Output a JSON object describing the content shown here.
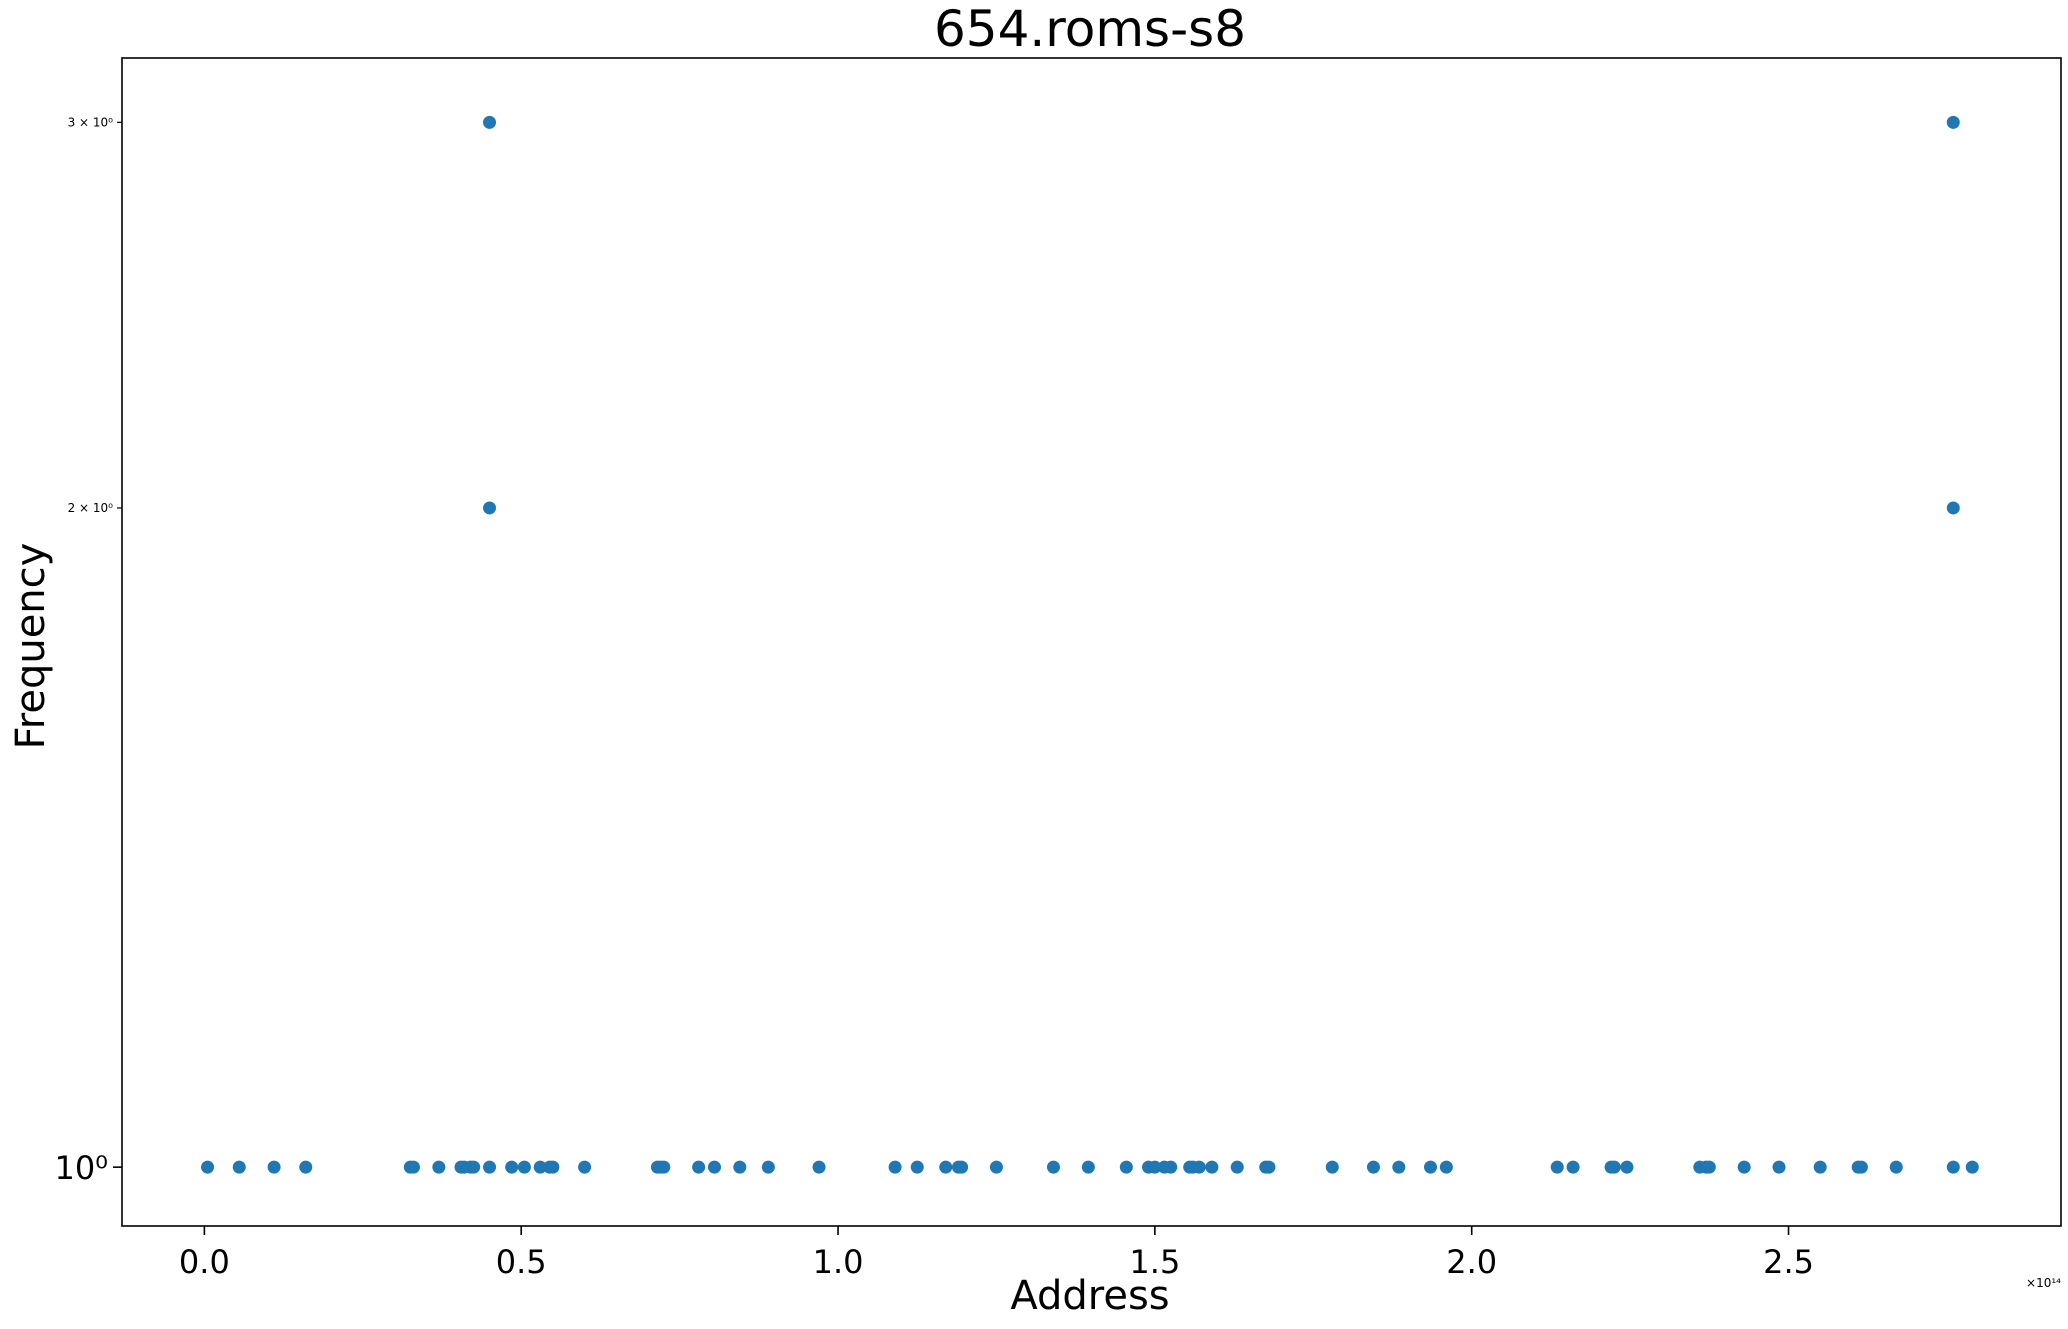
{
  "chart_data": {
    "type": "scatter",
    "title": "654.roms-s8",
    "xlabel": "Address",
    "ylabel": "Frequency",
    "x_offset_label": "×10¹⁴",
    "x_scale_factor": 100000000000000.0,
    "xlim": [
      -0.13,
      2.93
    ],
    "ylim": [
      0.94,
      3.21
    ],
    "yscale": "log",
    "grid": false,
    "marker_color": "#1f77b4",
    "x_ticks": [
      {
        "value": 0.0,
        "label": "0.0"
      },
      {
        "value": 0.5,
        "label": "0.5"
      },
      {
        "value": 1.0,
        "label": "1.0"
      },
      {
        "value": 1.5,
        "label": "1.5"
      },
      {
        "value": 2.0,
        "label": "2.0"
      },
      {
        "value": 2.5,
        "label": "2.5"
      }
    ],
    "y_ticks": [
      {
        "value": 1,
        "label": "10⁰",
        "major": true
      },
      {
        "value": 2,
        "label": "2 × 10⁰",
        "major": false
      },
      {
        "value": 3,
        "label": "3 × 10⁰",
        "major": false
      }
    ],
    "points": [
      {
        "x": 0.005,
        "y": 1
      },
      {
        "x": 0.055,
        "y": 1
      },
      {
        "x": 0.11,
        "y": 1
      },
      {
        "x": 0.16,
        "y": 1
      },
      {
        "x": 0.325,
        "y": 1
      },
      {
        "x": 0.33,
        "y": 1
      },
      {
        "x": 0.37,
        "y": 1
      },
      {
        "x": 0.405,
        "y": 1
      },
      {
        "x": 0.41,
        "y": 1
      },
      {
        "x": 0.42,
        "y": 1
      },
      {
        "x": 0.425,
        "y": 1
      },
      {
        "x": 0.45,
        "y": 1
      },
      {
        "x": 0.45,
        "y": 2
      },
      {
        "x": 0.45,
        "y": 3
      },
      {
        "x": 0.485,
        "y": 1
      },
      {
        "x": 0.505,
        "y": 1
      },
      {
        "x": 0.53,
        "y": 1
      },
      {
        "x": 0.545,
        "y": 1
      },
      {
        "x": 0.55,
        "y": 1
      },
      {
        "x": 0.6,
        "y": 1
      },
      {
        "x": 0.715,
        "y": 1
      },
      {
        "x": 0.72,
        "y": 1
      },
      {
        "x": 0.725,
        "y": 1
      },
      {
        "x": 0.78,
        "y": 1
      },
      {
        "x": 0.805,
        "y": 1
      },
      {
        "x": 0.845,
        "y": 1
      },
      {
        "x": 0.89,
        "y": 1
      },
      {
        "x": 0.97,
        "y": 1
      },
      {
        "x": 1.09,
        "y": 1
      },
      {
        "x": 1.125,
        "y": 1
      },
      {
        "x": 1.17,
        "y": 1
      },
      {
        "x": 1.19,
        "y": 1
      },
      {
        "x": 1.195,
        "y": 1
      },
      {
        "x": 1.25,
        "y": 1
      },
      {
        "x": 1.34,
        "y": 1
      },
      {
        "x": 1.395,
        "y": 1
      },
      {
        "x": 1.455,
        "y": 1
      },
      {
        "x": 1.49,
        "y": 1
      },
      {
        "x": 1.5,
        "y": 1
      },
      {
        "x": 1.515,
        "y": 1
      },
      {
        "x": 1.525,
        "y": 1
      },
      {
        "x": 1.555,
        "y": 1
      },
      {
        "x": 1.56,
        "y": 1
      },
      {
        "x": 1.57,
        "y": 1
      },
      {
        "x": 1.59,
        "y": 1
      },
      {
        "x": 1.63,
        "y": 1
      },
      {
        "x": 1.675,
        "y": 1
      },
      {
        "x": 1.68,
        "y": 1
      },
      {
        "x": 1.78,
        "y": 1
      },
      {
        "x": 1.845,
        "y": 1
      },
      {
        "x": 1.885,
        "y": 1
      },
      {
        "x": 1.935,
        "y": 1
      },
      {
        "x": 1.96,
        "y": 1
      },
      {
        "x": 2.135,
        "y": 1
      },
      {
        "x": 2.16,
        "y": 1
      },
      {
        "x": 2.22,
        "y": 1
      },
      {
        "x": 2.225,
        "y": 1
      },
      {
        "x": 2.245,
        "y": 1
      },
      {
        "x": 2.36,
        "y": 1
      },
      {
        "x": 2.37,
        "y": 1
      },
      {
        "x": 2.375,
        "y": 1
      },
      {
        "x": 2.43,
        "y": 1
      },
      {
        "x": 2.485,
        "y": 1
      },
      {
        "x": 2.55,
        "y": 1
      },
      {
        "x": 2.61,
        "y": 1
      },
      {
        "x": 2.615,
        "y": 1
      },
      {
        "x": 2.67,
        "y": 1
      },
      {
        "x": 2.76,
        "y": 1
      },
      {
        "x": 2.76,
        "y": 2
      },
      {
        "x": 2.76,
        "y": 3
      },
      {
        "x": 2.79,
        "y": 1
      }
    ]
  }
}
